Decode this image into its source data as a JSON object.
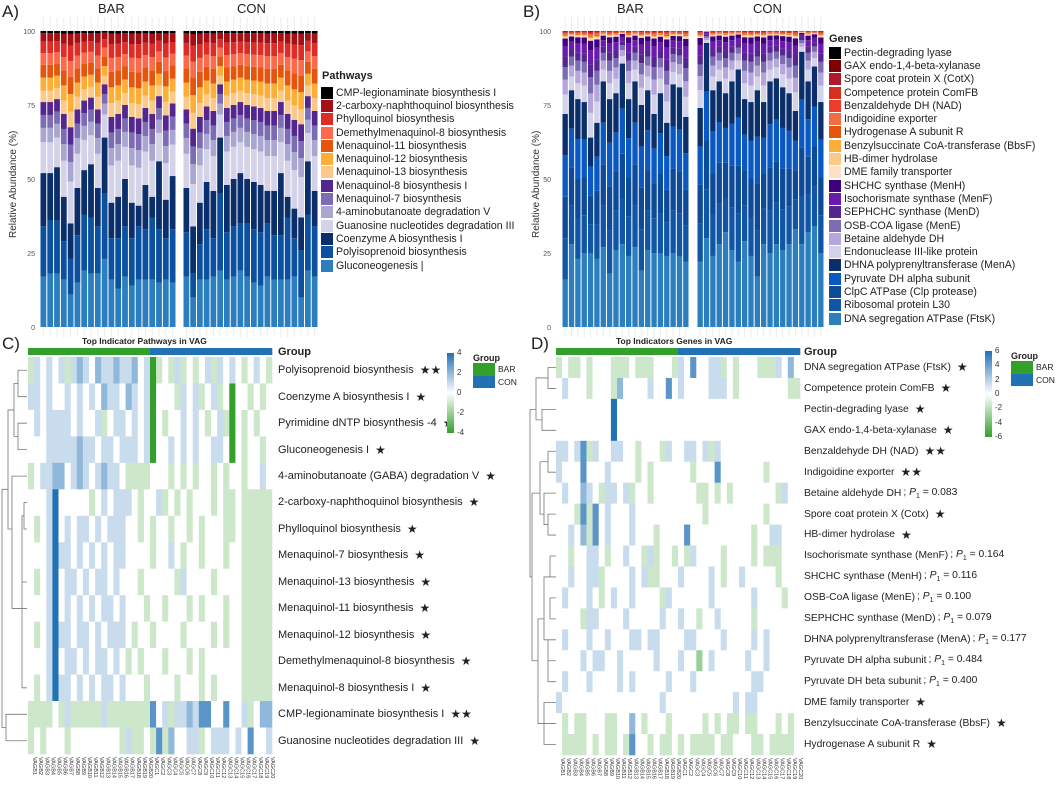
{
  "colors": {
    "bar": "#33a02c",
    "con": "#2171b5",
    "white": "#ffffff"
  },
  "chart_data": [
    {
      "id": "A",
      "type": "bar",
      "stacked": true,
      "panel_label": "A)",
      "facets": [
        "BAR",
        "CON"
      ],
      "ylabel": "Relative Abundance (%)",
      "ylim": [
        0,
        100
      ],
      "yticks": [
        "0",
        "25",
        "50",
        "75",
        "100"
      ],
      "legend_title": "Pathways",
      "legend": [
        {
          "label": "CMP-legionaminate biosynthesis I",
          "color": "#000000",
          "share": 0.015
        },
        {
          "label": "2-carboxy-naphthoquinol biosynthesis",
          "color": "#a50f15",
          "share": 0.06
        },
        {
          "label": "Phylloquinol biosynthesis",
          "color": "#de2d26",
          "share": 0.08
        },
        {
          "label": "Demethylmenaquinol-8 biosynthesis",
          "color": "#fb6a4a",
          "share": 0.08
        },
        {
          "label": "Menaquinol-11 biosynthesis",
          "color": "#e6550d",
          "share": 0.09
        },
        {
          "label": "Menaquinol-12 biosynthesis",
          "color": "#fdae37",
          "share": 0.09
        },
        {
          "label": "Menaquinol-13 biosynthesis",
          "color": "#fdc98a",
          "share": 0.08
        },
        {
          "label": "Menaquinol-8 biosynthesis I",
          "color": "#54278f",
          "share": 0.09
        },
        {
          "label": "Menaquinol-7 biosynthesis",
          "color": "#7b6cb3",
          "share": 0.09
        },
        {
          "label": "4-aminobutanoate degradation V",
          "color": "#a9a6d1",
          "share": 0.1
        },
        {
          "label": "Guanosine nucleotides degradation III",
          "color": "#d4d2e8",
          "share": 0.215
        },
        {
          "label": "Coenzyme A biosynthesis I",
          "color": "#0b2f6b"
        },
        {
          "label": "Polyisoprenoid biosynthesis",
          "color": "#0b51a0"
        },
        {
          "label": "Gluconeogenesis |",
          "color": "#2c7fbf"
        }
      ],
      "bottom_layers_cumulative": {
        "BAR": {
          "layer1": [
            17,
            18,
            18,
            16,
            11,
            15,
            19,
            18,
            18,
            23,
            16,
            13,
            17,
            14,
            16,
            16,
            16,
            15,
            16,
            15
          ],
          "layer2": [
            34,
            36,
            36,
            29,
            23,
            31,
            38,
            37,
            34,
            45,
            30,
            30,
            34,
            30,
            34,
            33,
            37,
            33,
            30,
            33
          ],
          "layer3": [
            52,
            52,
            54,
            44,
            35,
            47,
            53,
            55,
            47,
            64,
            42,
            44,
            50,
            42,
            41,
            48,
            44,
            56,
            43,
            51
          ]
        },
        "CON": {
          "layer1": [
            17,
            10,
            16,
            16,
            17,
            19,
            16,
            17,
            19,
            17,
            15,
            14,
            17,
            16,
            16,
            16,
            17,
            10,
            19,
            17
          ],
          "layer2": [
            32,
            18,
            28,
            33,
            30,
            45,
            32,
            34,
            35,
            35,
            33,
            32,
            35,
            31,
            31,
            37,
            30,
            26,
            38,
            34
          ],
          "layer3": [
            47,
            34,
            42,
            49,
            46,
            64,
            48,
            50,
            52,
            50,
            49,
            48,
            46,
            46,
            52,
            44,
            40,
            37,
            56,
            46
          ]
        }
      }
    },
    {
      "id": "B",
      "type": "bar",
      "stacked": true,
      "panel_label": "B)",
      "facets": [
        "BAR",
        "CON"
      ],
      "ylabel": "Relative Abundance (%)",
      "ylim": [
        0,
        100
      ],
      "yticks": [
        "0",
        "25",
        "50",
        "75",
        "100"
      ],
      "legend_title": "Genes",
      "legend": [
        {
          "label": "Pectin-degrading lyase",
          "color": "#000000",
          "share": 0.004
        },
        {
          "label": "GAX endo-1,4-beta-xylanase",
          "color": "#7f0000",
          "share": 0.004
        },
        {
          "label": "Spore coat protein X (CotX)",
          "color": "#b2182b",
          "share": 0.006
        },
        {
          "label": "Competence protein ComFB",
          "color": "#d7301f",
          "share": 0.01
        },
        {
          "label": "Benzaldehyde DH (NAD)",
          "color": "#ef3b2c",
          "share": 0.01
        },
        {
          "label": "Indigoidine exporter",
          "color": "#f16d43",
          "share": 0.01
        },
        {
          "label": "Hydrogenase A subunit R",
          "color": "#e6550d",
          "share": 0.01
        },
        {
          "label": "Benzylsuccinate CoA-transferase (BbsF)",
          "color": "#fdae37",
          "share": 0.012
        },
        {
          "label": "HB-dimer hydrolase",
          "color": "#fdc98a",
          "share": 0.012
        },
        {
          "label": "DME family transporter",
          "color": "#fde0c8",
          "share": 0.012
        },
        {
          "label": "SHCHC synthase (MenH)",
          "color": "#3f007d",
          "share": 0.09
        },
        {
          "label": "Isochorismate synthase (MenF)",
          "color": "#6a1bad",
          "share": 0.13
        },
        {
          "label": "SEPHCHC synthase (MenD)",
          "color": "#54278f",
          "share": 0.12
        },
        {
          "label": "OSB-COA ligase (MenE)",
          "color": "#7b6cb3",
          "share": 0.15
        },
        {
          "label": "Betaine aldehyde DH",
          "color": "#b5a6dc",
          "share": 0.18
        },
        {
          "label": "Endonuclease III-like protein",
          "color": "#d4d2e8",
          "share": 0.23
        },
        {
          "label": "DHNA polyprenyltransferase (MenA)",
          "color": "#0b2f6b"
        },
        {
          "label": "Pyruvate DH alpha subunit",
          "color": "#0a58c2"
        },
        {
          "label": "ClpC ATPase (Clp protease)",
          "color": "#0d4a98"
        },
        {
          "label": "Ribosomal protein L30",
          "color": "#1156a6"
        },
        {
          "label": "DNA segregation ATPase (FtsK)",
          "color": "#2c7fbf"
        }
      ],
      "bottom_layers_cumulative": {
        "BAR": {
          "layer1": [
            16,
            28,
            23,
            25,
            25,
            23,
            27,
            18,
            26,
            28,
            24,
            27,
            19,
            26,
            25,
            25,
            24,
            25,
            24,
            22
          ],
          "top_blue": [
            72,
            80,
            77,
            76,
            64,
            69,
            83,
            77,
            79,
            89,
            77,
            83,
            75,
            80,
            72,
            79,
            69,
            82,
            81,
            71
          ]
        },
        "CON": {
          "layer1": [
            22,
            30,
            24,
            28,
            32,
            26,
            22,
            29,
            24,
            17,
            28,
            25,
            28,
            26,
            28,
            33,
            28,
            32,
            34,
            25
          ],
          "top_blue": [
            74,
            96,
            80,
            83,
            79,
            83,
            87,
            77,
            76,
            80,
            76,
            83,
            84,
            81,
            79,
            73,
            93,
            83,
            88,
            76
          ]
        }
      }
    },
    {
      "id": "C",
      "type": "heatmap",
      "panel_label": "C)",
      "title": "Top Indicator Pathways in VAG",
      "group_label": "Group",
      "color_range": [
        -4,
        4
      ],
      "colorbar_ticks": [
        "4",
        "2",
        "0",
        "-2",
        "-4"
      ],
      "group_legend_title": "Group",
      "groups": [
        "BAR",
        "CON"
      ],
      "rows": [
        {
          "name": "Polyisoprenoid biosynthesis",
          "sig": "★★",
          "v": "3545453565465565564503435343453545434543"
        },
        {
          "name": "Coenzyme A biosynthesis I",
          "sig": "★",
          "v": "5545445454546554654504443545345340443434"
        },
        {
          "name": "Pyrimidine dNTP biosynthesis -4",
          "sig": "★",
          "v": "4545555454453455454504344545434530434344"
        },
        {
          "name": "Gluconeogenesis I",
          "sig": "★",
          "v": "4445555565545545554504454545445540434434"
        },
        {
          "name": "4-aminobutanoate (GABA) degradation V",
          "sig": "★",
          "v": "3455664565456554333344434343443434434454"
        },
        {
          "name": "2-carboxy-naphthoquinol biosynthesis",
          "sig": "★",
          "v": "4445844444345455543445343434443433433333"
        },
        {
          "name": "Phylloquinol biosynthesis",
          "sig": "★",
          "v": "4345845455454555443434434434344433433333"
        },
        {
          "name": "Menaquinol-7 biosynthesis",
          "sig": "★",
          "v": "4445855454545455444434454344344434433333"
        },
        {
          "name": "Menaquinol-13 biosynthesis",
          "sig": "★",
          "v": "4345845545455454443444443544443444433333"
        },
        {
          "name": "Menaquinol-11 biosynthesis",
          "sig": "★",
          "v": "4445845454545545444344344434344434433333"
        },
        {
          "name": "Menaquinol-12 biosynthesis",
          "sig": "★",
          "v": "4345855455454555434434444344443434433333"
        },
        {
          "name": "Demethylmenaquinol-8 biosynthesis",
          "sig": "★",
          "v": "4445845545455454343444344434344444433333"
        },
        {
          "name": "Menaquinol-8 biosynthesis I",
          "sig": "★",
          "v": "4345855454545545444344443444343444433333"
        },
        {
          "name": "CMP-legionaminate biosynthesis I",
          "sig": "★★",
          "v": "3333435333335333333374535565774474453466"
        },
        {
          "name": "Guanosine nucleotides degradation III",
          "sig": "★",
          "v": "3434443444444443533437364455345554547445"
        }
      ],
      "columns": [
        "VAGB1",
        "VAGB2",
        "VAGB3",
        "VAGB4",
        "VAGB5",
        "VAGB6",
        "VAGB7",
        "VAGB8",
        "VAGB9",
        "VAGB10",
        "VAGB11",
        "VAGB12",
        "VAGB13",
        "VAGB14",
        "VAGB15",
        "VAGB16",
        "VAGB17",
        "VAGB18",
        "VAGB19",
        "VAGB20",
        "VAGC1",
        "VAGC2",
        "VAGC3",
        "VAGC4",
        "VAGC5",
        "VAGC6",
        "VAGC7",
        "VAGC8",
        "VAGC9",
        "VAGC10",
        "VAGC11",
        "VAGC12",
        "VAGC13",
        "VAGC14",
        "VAGC15",
        "VAGC16",
        "VAGC17",
        "VAGC18",
        "VAGC19",
        "VAGC20"
      ]
    },
    {
      "id": "D",
      "type": "heatmap",
      "panel_label": "D)",
      "title": "Top Indicators Genes in VAG",
      "group_label": "Group",
      "color_range": [
        -6,
        6
      ],
      "colorbar_ticks": [
        "6",
        "4",
        "2",
        "0",
        "-2",
        "-4",
        "-6"
      ],
      "group_legend_title": "Group",
      "groups": [
        "BAR",
        "CON"
      ],
      "p_symbol": "P",
      "p_sub": "1",
      "rows": [
        {
          "name": "DNA segregation ATPase (FtsK)",
          "sig": "★",
          "v": "3433434443334333444354744553434443335464"
        },
        {
          "name": "Competence protein ComFB",
          "sig": "★",
          "v": "4544434443644445447454444555434444444433"
        },
        {
          "name": "Pectin-degrading lyase",
          "sig": "★",
          "v": "4444444448444444444444444444444444444444"
        },
        {
          "name": "GAX endo-1,4-beta-xylanase",
          "sig": "★",
          "v": "4444444448444444444444444444444444444444"
        },
        {
          "name": "Benzaldehyde DH (NAD)",
          "sig": "★★",
          "v": "5545735445544344435445545354444444444444"
        },
        {
          "name": "Indigoidine exporter",
          "sig": "★★",
          "v": "5444744454444343444444344474444444344444"
        },
        {
          "name": "Betaine aldehyde DH",
          "p": "0.083",
          "v": "4544654355453443444444433434344444443544"
        },
        {
          "name": "Spore coat protein X (Cotx)",
          "sig": "★",
          "v": "4443737454445444444444443444444444344444"
        },
        {
          "name": "HB-dimer hydrolase",
          "sig": "★",
          "v": "4454637454445444344447444444444434455444"
        },
        {
          "name": "Isochorismate synthase (MenF)",
          "p": "0.164",
          "v": "4434455434454435344343544443444434333444"
        },
        {
          "name": "SHCHC synthase (MenH)",
          "p": "0.116",
          "v": "4454455344445453344454444543445444443444"
        },
        {
          "name": "OSB-CoA ligase (MenE)",
          "p": "0.100",
          "v": "4544454345445444435444444544444454444344"
        },
        {
          "name": "SEPHCHC synthase (MenD)",
          "p": "0.079",
          "v": "4444355444454444454454434454444434444444"
        },
        {
          "name": "DHNA polyprenyltransferase (MenA)",
          "p": "0.177",
          "v": "4544454454445545544445544445444454544444"
        },
        {
          "name": "Pyruvate DH alpha subunit",
          "p": "0.484",
          "v": "4444545544544444544454424544444544544444"
        },
        {
          "name": "Pyruvate DH beta subunit",
          "p": "0.400",
          "v": "4544454444545444445444544444444455444444"
        },
        {
          "name": "DME family transporter",
          "sig": "★",
          "v": "5444444444444444454444444444454554444444"
        },
        {
          "name": "Benzylsuccinate CoA-transferase (BbsF)",
          "sig": "★",
          "v": "4343344433446434443444443434334334443434"
        },
        {
          "name": "Hydrogenase A subunit R",
          "sig": "★",
          "v": "4333343433437443433434333343344433433334"
        }
      ],
      "columns": [
        "VAGB1",
        "VAGB2",
        "VAGB3",
        "VAGB4",
        "VAGB5",
        "VAGB6",
        "VAGB7",
        "VAGB8",
        "VAGB9",
        "VAGB10",
        "VAGB11",
        "VAGB12",
        "VAGB13",
        "VAGB14",
        "VAGB15",
        "VAGB16",
        "VAGB17",
        "VAGB18",
        "VAGB19",
        "VAGB20",
        "VAGC1",
        "VAGC2",
        "VAGC3",
        "VAGC4",
        "VAGC5",
        "VAGC6",
        "VAGC7",
        "VAGC8",
        "VAGC9",
        "VAGC10",
        "VAGC11",
        "VAGC12",
        "VAGC13",
        "VAGC14",
        "VAGC15",
        "VAGC16",
        "VAGC17",
        "VAGC18",
        "VAGC19",
        "VAGC20"
      ]
    }
  ]
}
